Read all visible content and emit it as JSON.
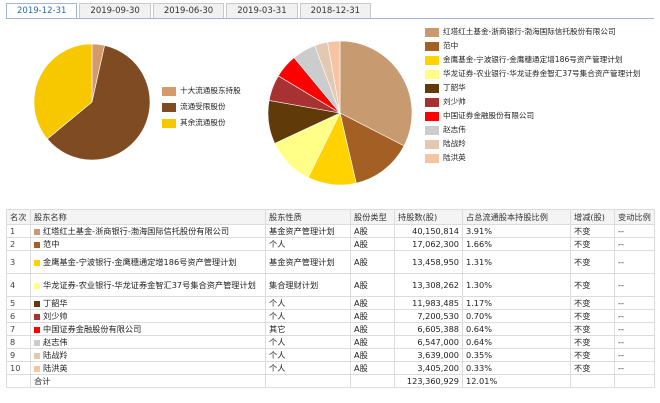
{
  "tabs": [
    "2019-12-31",
    "2019-09-30",
    "2019-06-30",
    "2019-03-31",
    "2018-12-31"
  ],
  "active_tab": 0,
  "chart_data": [
    {
      "type": "pie",
      "categories": [
        "十大流通股东持股",
        "流通受限股份",
        "其余流通股份"
      ],
      "values": [
        3.5,
        60.5,
        36.0
      ],
      "colors": [
        "#d49a69",
        "#7f4b22",
        "#f7c800"
      ]
    },
    {
      "type": "pie",
      "categories": [
        "红塔红土基金-浙商银行-渤海国际信托股份有限公司",
        "范中",
        "金鹰基金-宁波银行-金鹰穗通定增186号资产管理计划",
        "华龙证券-农业银行-华龙证券金智汇37号集合资产管理计划",
        "丁韶华",
        "刘少帅",
        "中国证券金融股份有限公司",
        "赵志伟",
        "陆战羚",
        "陆洪英"
      ],
      "values": [
        40150814,
        17062300,
        13458950,
        13308262,
        11983485,
        7200530,
        6605388,
        6547000,
        3639000,
        3405200
      ],
      "colors": [
        "#c79a70",
        "#a35f24",
        "#ffd200",
        "#ffff88",
        "#603a08",
        "#a83232",
        "#ff0000",
        "#cccccc",
        "#e4c9b2",
        "#f6c3a3"
      ]
    }
  ],
  "table": {
    "headers": [
      "名次",
      "股东名称",
      "股东性质",
      "股份类型",
      "持股数(股)",
      "占总流通股本持股比例",
      "增减(股)",
      "变动比例"
    ],
    "rows": [
      {
        "rank": "1",
        "name": "红塔红土基金-浙商银行-渤海国际信托股份有限公司",
        "nature": "基金资产管理计划",
        "type": "A股",
        "shares": "40,150,814",
        "ratio": "3.91%",
        "change": "不变",
        "change_ratio": "--"
      },
      {
        "rank": "2",
        "name": "范中",
        "nature": "个人",
        "type": "A股",
        "shares": "17,062,300",
        "ratio": "1.66%",
        "change": "不变",
        "change_ratio": "--"
      },
      {
        "rank": "3",
        "name": "金鹰基金-宁波银行-金鹰穗通定增186号资产管理计划",
        "nature": "基金资产管理计划",
        "type": "A股",
        "shares": "13,458,950",
        "ratio": "1.31%",
        "change": "不变",
        "change_ratio": "--"
      },
      {
        "rank": "4",
        "name": "华龙证券-农业银行-华龙证券金智汇37号集合资产管理计划",
        "nature": "集合理财计划",
        "type": "A股",
        "shares": "13,308,262",
        "ratio": "1.30%",
        "change": "不变",
        "change_ratio": "--"
      },
      {
        "rank": "5",
        "name": "丁韶华",
        "nature": "个人",
        "type": "A股",
        "shares": "11,983,485",
        "ratio": "1.17%",
        "change": "不变",
        "change_ratio": "--"
      },
      {
        "rank": "6",
        "name": "刘少帅",
        "nature": "个人",
        "type": "A股",
        "shares": "7,200,530",
        "ratio": "0.70%",
        "change": "不变",
        "change_ratio": "--"
      },
      {
        "rank": "7",
        "name": "中国证券金融股份有限公司",
        "nature": "其它",
        "type": "A股",
        "shares": "6,605,388",
        "ratio": "0.64%",
        "change": "不变",
        "change_ratio": "--"
      },
      {
        "rank": "8",
        "name": "赵志伟",
        "nature": "个人",
        "type": "A股",
        "shares": "6,547,000",
        "ratio": "0.64%",
        "change": "不变",
        "change_ratio": "--"
      },
      {
        "rank": "9",
        "name": "陆战羚",
        "nature": "个人",
        "type": "A股",
        "shares": "3,639,000",
        "ratio": "0.35%",
        "change": "不变",
        "change_ratio": "--"
      },
      {
        "rank": "10",
        "name": "陆洪英",
        "nature": "个人",
        "type": "A股",
        "shares": "3,405,200",
        "ratio": "0.33%",
        "change": "不变",
        "change_ratio": "--"
      }
    ],
    "total": {
      "label": "合计",
      "shares": "123,360,929",
      "ratio": "12.01%"
    }
  }
}
